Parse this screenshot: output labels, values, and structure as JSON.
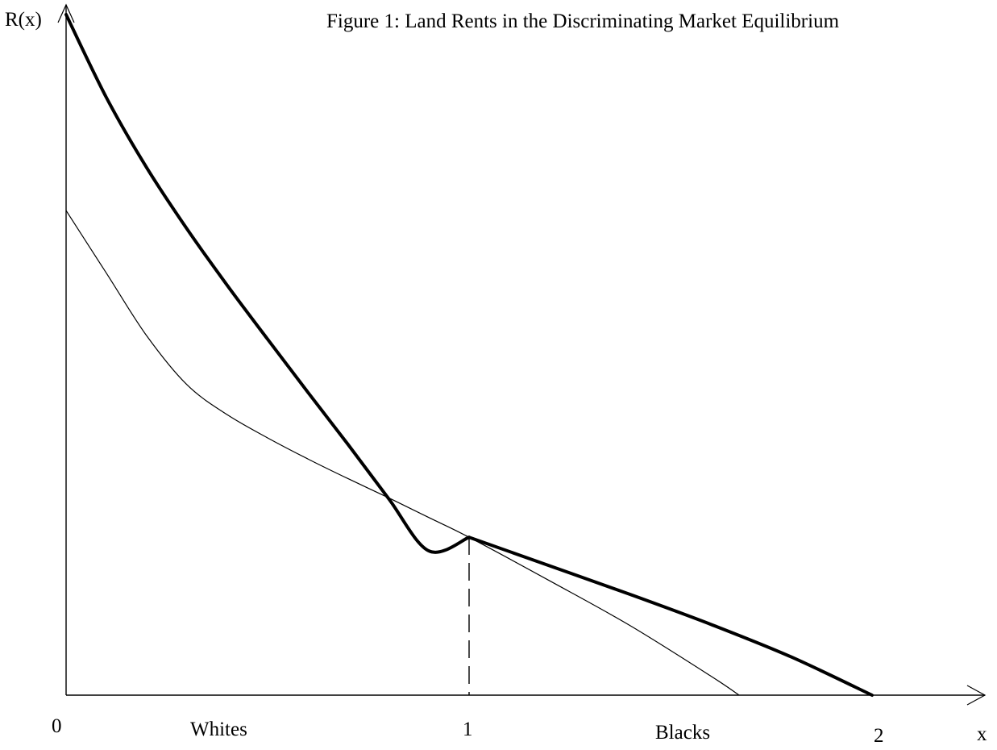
{
  "title": "Figure 1: Land Rents in the Discriminating Market Equilibrium",
  "axes": {
    "y_label": "R(x)",
    "x_label": "x",
    "x_ticks": [
      "0",
      "1",
      "2"
    ]
  },
  "regions": {
    "left": "Whites",
    "right": "Blacks"
  },
  "colors": {
    "background": "#ffffff",
    "ink": "#000000"
  },
  "chart_data": {
    "type": "line",
    "title": "Figure 1: Land Rents in the Discriminating Market Equilibrium",
    "xlabel": "x",
    "ylabel": "R(x)",
    "xlim": [
      0,
      2.3
    ],
    "grid": false,
    "annotations": [
      "Whites",
      "Blacks"
    ],
    "series": [
      {
        "style": "bold",
        "x": [
          0,
          0.1,
          0.2,
          0.3,
          0.4,
          0.5,
          0.6,
          0.7,
          0.8,
          0.9,
          1.0,
          1.2,
          1.4,
          1.6,
          1.8,
          2.0
        ],
        "y": [
          1.0,
          0.878,
          0.775,
          0.685,
          0.602,
          0.523,
          0.445,
          0.368,
          0.289,
          0.212,
          0.232,
          0.19,
          0.148,
          0.104,
          0.056,
          0.0
        ]
      },
      {
        "style": "thin",
        "x": [
          0,
          0.1,
          0.2,
          0.3,
          0.4,
          0.5,
          0.6,
          0.7,
          0.8,
          0.9,
          1.0,
          1.2,
          1.4,
          1.6,
          1.67
        ],
        "y": [
          0.712,
          0.62,
          0.528,
          0.456,
          0.412,
          0.378,
          0.347,
          0.318,
          0.29,
          0.261,
          0.232,
          0.168,
          0.102,
          0.028,
          0.0
        ]
      }
    ]
  }
}
